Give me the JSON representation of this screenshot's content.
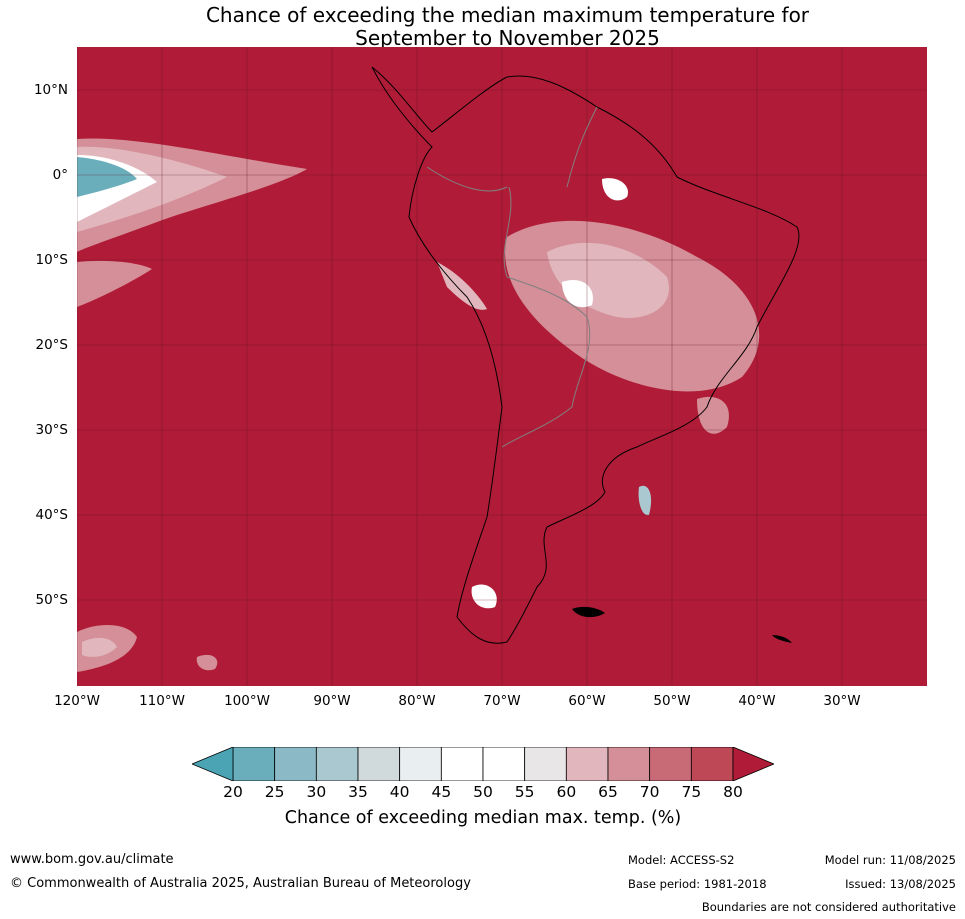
{
  "title": {
    "line1": "Chance of exceeding the median maximum temperature for",
    "line2": "September to November 2025"
  },
  "map": {
    "base_color": "#b01c37",
    "lat_labels": [
      "10°N",
      "0°",
      "10°S",
      "20°S",
      "30°S",
      "40°S",
      "50°S"
    ],
    "lon_labels": [
      "120°W",
      "110°W",
      "100°W",
      "90°W",
      "80°W",
      "70°W",
      "60°W",
      "50°W",
      "40°W",
      "30°W"
    ]
  },
  "colorbar": {
    "ticks": [
      "20",
      "25",
      "30",
      "35",
      "40",
      "45",
      "50",
      "55",
      "60",
      "65",
      "70",
      "75",
      "80"
    ],
    "colors": [
      "#4ba4b4",
      "#6aaebb",
      "#8bb9c6",
      "#aac8cf",
      "#d0dadd",
      "#e9eff1",
      "#ffffff",
      "#ffffff",
      "#e8e6e7",
      "#e1b7bd",
      "#d48f98",
      "#c96b77",
      "#bf4856",
      "#b01c37"
    ],
    "label": "Chance of exceeding median max. temp. (%)"
  },
  "footer": {
    "website": "www.bom.gov.au/climate",
    "copyright": "© Commonwealth of Australia 2025, Australian Bureau of Meteorology",
    "model": "Model: ACCESS-S2",
    "base_period": "Base period: 1981-2018",
    "model_run": "Model run: 11/08/2025",
    "issued": "Issued: 13/08/2025",
    "disclaimer": "Boundaries are not considered authoritative"
  }
}
